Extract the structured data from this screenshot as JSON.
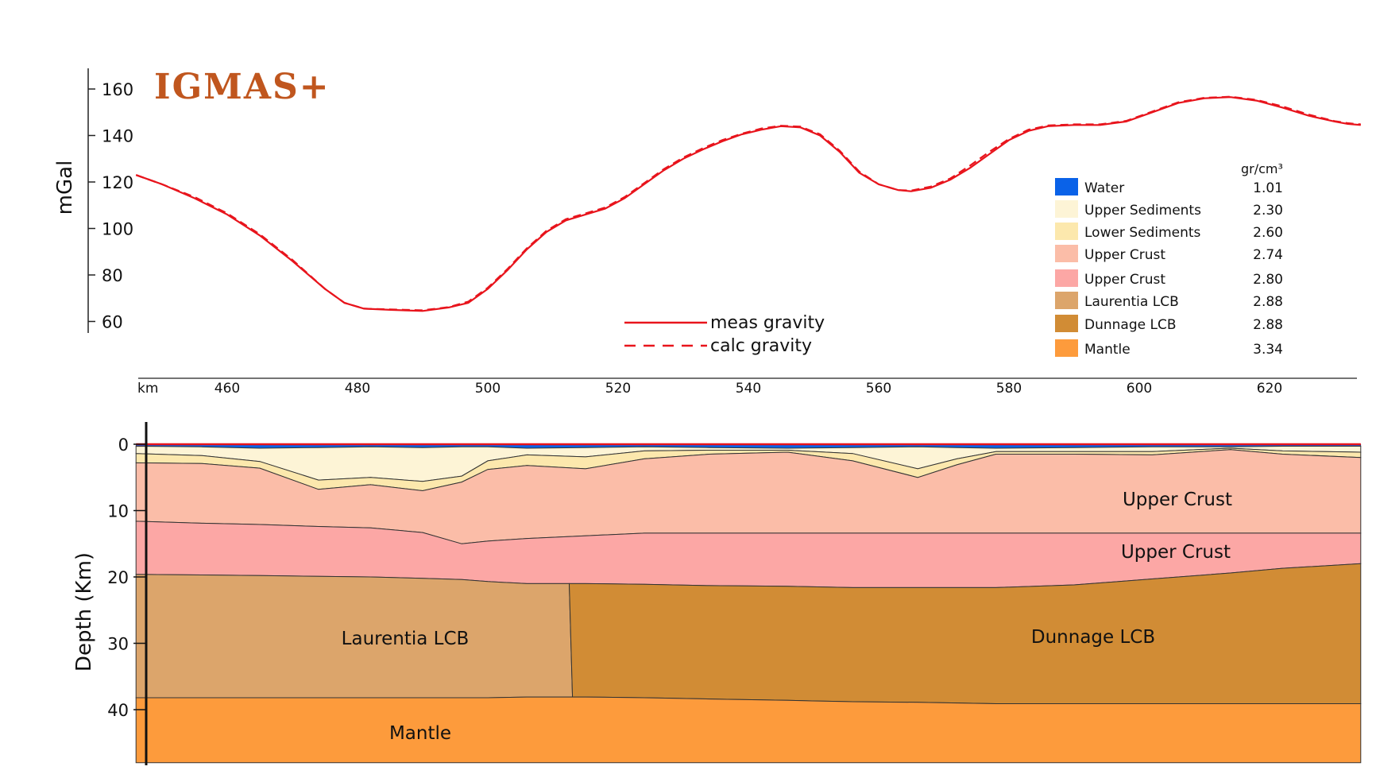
{
  "logo": "IGMAS+",
  "colors": {
    "meas": "#e8141c",
    "calc": "#e8141c",
    "water": "#0a62e8",
    "upper_sed": "#fdf4d6",
    "lower_sed": "#fce8ad",
    "upper_crust_1": "#fbbda8",
    "upper_crust_2": "#fca7a5",
    "laurentia": "#dca56b",
    "dunnage": "#d18c35",
    "mantle": "#fd9b3c"
  },
  "chart_data": [
    {
      "type": "line",
      "title": "",
      "ylabel": "mGal",
      "xlabel": "km",
      "xlim": [
        444,
        634
      ],
      "ylim": [
        60,
        160
      ],
      "x_ticks": [
        460,
        480,
        500,
        520,
        540,
        560,
        580,
        600,
        620
      ],
      "y_ticks": [
        160,
        140,
        120,
        100,
        80,
        60
      ],
      "series": [
        {
          "name": "meas gravity",
          "style": "solid",
          "x": [
            446,
            450,
            455,
            460,
            465,
            470,
            475,
            478,
            481,
            485,
            490,
            494,
            497,
            500,
            503,
            506,
            509,
            512,
            515,
            518,
            521,
            524,
            527,
            530,
            533,
            536,
            539,
            542,
            545,
            548,
            551,
            554,
            557,
            560,
            563,
            565,
            568,
            571,
            574,
            577,
            580,
            583,
            586,
            590,
            594,
            598,
            602,
            606,
            610,
            614,
            618,
            622,
            626,
            630,
            632,
            634
          ],
          "y": [
            123,
            119,
            113,
            106,
            97,
            86,
            74,
            68,
            65.5,
            65,
            64.5,
            66,
            68,
            74,
            82,
            91,
            98.5,
            103.5,
            106,
            108.5,
            113,
            119,
            125,
            130,
            134,
            137.5,
            140.5,
            142.5,
            144,
            143.5,
            140,
            133,
            124,
            119,
            116.5,
            116,
            117.5,
            121,
            126,
            132,
            138,
            142,
            144,
            144.5,
            144.5,
            146,
            150,
            154,
            156,
            156.5,
            155,
            152,
            148.5,
            146,
            145,
            144.5
          ]
        },
        {
          "name": "calc gravity",
          "style": "dashed",
          "x": [
            446,
            450,
            455,
            460,
            465,
            470,
            475,
            478,
            481,
            485,
            490,
            494,
            497,
            500,
            503,
            506,
            509,
            512,
            515,
            518,
            521,
            524,
            527,
            530,
            533,
            536,
            539,
            542,
            545,
            548,
            551,
            554,
            557,
            560,
            563,
            565,
            568,
            571,
            574,
            577,
            580,
            583,
            586,
            590,
            594,
            598,
            602,
            606,
            610,
            614,
            618,
            622,
            626,
            630,
            632,
            634
          ],
          "y": [
            123,
            119,
            113.5,
            106.5,
            97.5,
            86.5,
            74,
            68,
            65.5,
            65.2,
            64.8,
            66.2,
            68.5,
            74.5,
            82.5,
            91.5,
            99,
            104,
            106.5,
            109,
            113.5,
            119.5,
            125.5,
            130.5,
            134.5,
            138,
            140.8,
            143,
            144.2,
            143.8,
            140.5,
            133.5,
            124.5,
            119,
            116.5,
            116.3,
            118,
            121.5,
            127,
            133,
            138.5,
            142.5,
            144.3,
            144.8,
            144.8,
            146.3,
            150.3,
            154.3,
            156.2,
            156.7,
            155.3,
            152.5,
            149,
            146.2,
            145.3,
            144.8
          ]
        }
      ],
      "legend": {
        "unit": "gr/cm³",
        "entries": [
          {
            "name": "Water",
            "density": "1.01",
            "color": "#0a62e8"
          },
          {
            "name": "Upper Sediments",
            "density": "2.30",
            "color": "#fdf4d6"
          },
          {
            "name": "Lower Sediments",
            "density": "2.60",
            "color": "#fce8ad"
          },
          {
            "name": "Upper Crust",
            "density": "2.74",
            "color": "#fbbda8"
          },
          {
            "name": "Upper Crust",
            "density": "2.80",
            "color": "#fca7a5"
          },
          {
            "name": "Laurentia LCB",
            "density": "2.88",
            "color": "#dca56b"
          },
          {
            "name": "Dunnage LCB",
            "density": "2.88",
            "color": "#d18c35"
          },
          {
            "name": "Mantle",
            "density": "3.34",
            "color": "#fd9b3c"
          }
        ]
      }
    },
    {
      "type": "area",
      "title": "",
      "ylabel": "Depth (Km)",
      "xlim": [
        444,
        634
      ],
      "ylim": [
        0,
        48
      ],
      "y_ticks": [
        0,
        10,
        20,
        30,
        40
      ],
      "layers": [
        {
          "name": "Water",
          "color": "#0a62e8"
        },
        {
          "name": "Upper Sediments",
          "color": "#fdf4d6"
        },
        {
          "name": "Lower Sediments",
          "color": "#fce8ad"
        },
        {
          "name": "Upper Crust",
          "color": "#fbbda8",
          "label": "Upper Crust"
        },
        {
          "name": "Upper Crust",
          "color": "#fca7a5",
          "label": "Upper Crust"
        },
        {
          "name": "Laurentia LCB",
          "color": "#dca56b",
          "label": "Laurentia LCB"
        },
        {
          "name": "Dunnage LCB",
          "color": "#d18c35",
          "label": "Dunnage LCB"
        },
        {
          "name": "Mantle",
          "color": "#fd9b3c",
          "label": "Mantle"
        }
      ],
      "boundaries": {
        "x": [
          446,
          456,
          465,
          474,
          482,
          490,
          496,
          500,
          506,
          515,
          524,
          534,
          546,
          556,
          566,
          572,
          578,
          590,
          602,
          614,
          622,
          634
        ],
        "upper_sed_top": [
          0.3,
          0.4,
          0.6,
          0.5,
          0.4,
          0.5,
          0.4,
          0.4,
          0.6,
          0.5,
          0.4,
          0.5,
          0.6,
          0.5,
          0.4,
          0.5,
          0.6,
          0.5,
          0.4,
          0.4,
          0.3,
          0.3
        ],
        "upper_sed_base": [
          1.4,
          1.7,
          2.6,
          5.4,
          5.0,
          5.6,
          4.8,
          2.5,
          1.6,
          1.9,
          1.0,
          0.9,
          0.9,
          1.4,
          3.7,
          2.2,
          1.1,
          1.1,
          1.1,
          0.6,
          1.0,
          1.2
        ],
        "lower_sed_base": [
          2.8,
          2.9,
          3.6,
          6.8,
          6.1,
          7.0,
          5.7,
          3.8,
          3.2,
          3.7,
          2.2,
          1.5,
          1.2,
          2.5,
          5.0,
          3.1,
          1.5,
          1.5,
          1.6,
          0.8,
          1.5,
          2.0
        ],
        "uc1_base": [
          11.6,
          11.9,
          12.1,
          12.4,
          12.6,
          13.3,
          15.0,
          14.6,
          14.2,
          13.8,
          13.4,
          13.4,
          13.4,
          13.4,
          13.4,
          13.4,
          13.4,
          13.4,
          13.4,
          13.4,
          13.4,
          13.4
        ],
        "uc2_base": [
          19.6,
          19.7,
          19.8,
          19.9,
          20.0,
          20.2,
          20.4,
          20.7,
          21.0,
          21.0,
          21.1,
          21.3,
          21.4,
          21.6,
          21.6,
          21.6,
          21.6,
          21.2,
          20.3,
          19.4,
          18.7,
          18.0
        ],
        "lcb_base": [
          38.2,
          38.2,
          38.2,
          38.2,
          38.2,
          38.2,
          38.2,
          38.2,
          38.1,
          38.1,
          38.2,
          38.4,
          38.6,
          38.8,
          38.9,
          39.0,
          39.1,
          39.1,
          39.1,
          39.1,
          39.1,
          39.1
        ],
        "terrane_contact_x": [
          512.5,
          513.0
        ],
        "terrane_contact_depth": [
          21.0,
          38.1
        ]
      }
    }
  ]
}
